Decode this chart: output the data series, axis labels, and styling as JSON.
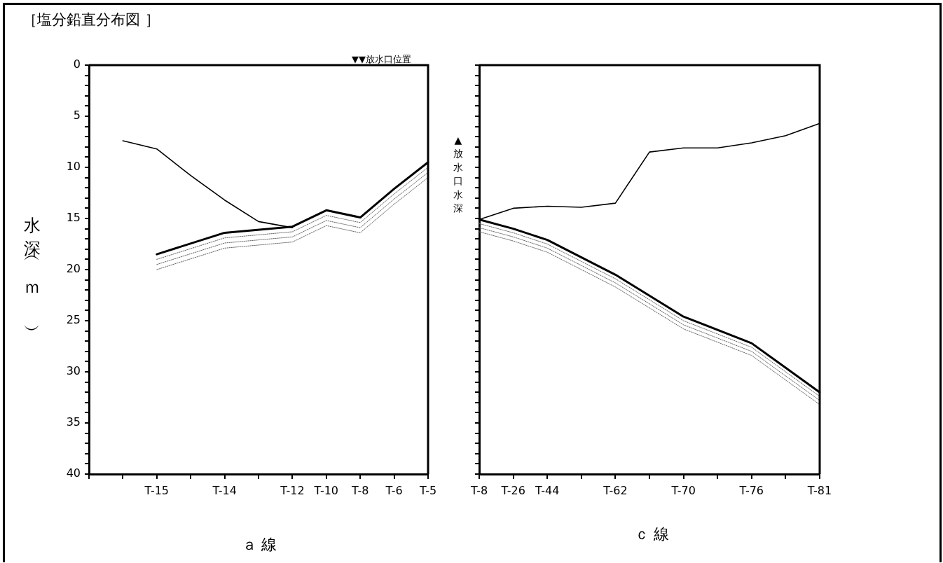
{
  "chart_data": [
    {
      "type": "line",
      "title": "［塩分鉛直分布図 ］",
      "xlabel": "ａ 線",
      "ylabel": "水深（ｍ）",
      "marker": "none",
      "grid": false,
      "legend": false,
      "categories": [
        null,
        null,
        "T-15",
        null,
        "T-14",
        null,
        "T-12",
        "T-10",
        "T-8",
        "T-6",
        "T-5"
      ],
      "ylim": [
        40,
        0
      ],
      "yticks": [
        0,
        {
          "value": 1,
          "label": null
        },
        {
          "value": 2,
          "label": null
        },
        {
          "value": 3,
          "label": null
        },
        {
          "value": 4,
          "label": null
        },
        5,
        {
          "value": 6,
          "label": null
        },
        {
          "value": 7,
          "label": null
        },
        {
          "value": 8,
          "label": null
        },
        {
          "value": 9,
          "label": null
        },
        10,
        {
          "value": 11,
          "label": null
        },
        {
          "value": 12,
          "label": null
        },
        {
          "value": 13,
          "label": null
        },
        {
          "value": 14,
          "label": null
        },
        15,
        {
          "value": 16,
          "label": null
        },
        {
          "value": 17,
          "label": null
        },
        {
          "value": 18,
          "label": null
        },
        {
          "value": 19,
          "label": null
        },
        20,
        {
          "value": 21,
          "label": null
        },
        {
          "value": 22,
          "label": null
        },
        {
          "value": 23,
          "label": null
        },
        {
          "value": 24,
          "label": null
        },
        25,
        {
          "value": 26,
          "label": null
        },
        {
          "value": 27,
          "label": null
        },
        {
          "value": 28,
          "label": null
        },
        {
          "value": 29,
          "label": null
        },
        30,
        {
          "value": 31,
          "label": null
        },
        {
          "value": 32,
          "label": null
        },
        {
          "value": 33,
          "label": null
        },
        {
          "value": 34,
          "label": null
        },
        35,
        {
          "value": 36,
          "label": null
        },
        {
          "value": 37,
          "label": null
        },
        {
          "value": 38,
          "label": null
        },
        {
          "value": 39,
          "label": null
        },
        40
      ],
      "annotations": [
        "▼▼放水口位置"
      ],
      "series": [
        {
          "color": "#000000",
          "line_style": "solid",
          "values": [
            null,
            null,
            18.5,
            null,
            16.4,
            null,
            15.8,
            14.2,
            14.9,
            12.1,
            9.5
          ]
        },
        {
          "color": "#666666",
          "line_style": "dotted",
          "values": [
            null,
            null,
            19.0,
            null,
            16.9,
            null,
            16.3,
            14.7,
            15.4,
            12.6,
            10.0
          ]
        },
        {
          "color": "#666666",
          "line_style": "dotted",
          "values": [
            null,
            null,
            19.5,
            null,
            17.4,
            null,
            16.8,
            15.2,
            15.9,
            13.1,
            10.5
          ]
        },
        {
          "color": "#666666",
          "line_style": "dotted",
          "values": [
            null,
            null,
            20.0,
            null,
            17.9,
            null,
            17.3,
            15.7,
            16.4,
            13.6,
            11.0
          ]
        },
        {
          "color": "#000000",
          "line_style": "solid",
          "values": [
            null,
            7.4,
            8.2,
            10.8,
            13.2,
            15.3,
            15.9,
            null,
            null,
            null,
            null
          ]
        }
      ]
    },
    {
      "type": "line",
      "xlabel": "ｃ 線",
      "marker": "none",
      "grid": false,
      "legend": false,
      "tick_labels": "x",
      "categories": [
        "T-8",
        "T-26",
        "T-44",
        null,
        "T-62",
        null,
        "T-70",
        null,
        "T-76",
        null,
        "T-81"
      ],
      "ylim": [
        40,
        0
      ],
      "yticks": [
        0,
        {
          "value": 1,
          "label": null
        },
        {
          "value": 2,
          "label": null
        },
        {
          "value": 3,
          "label": null
        },
        {
          "value": 4,
          "label": null
        },
        5,
        {
          "value": 6,
          "label": null
        },
        {
          "value": 7,
          "label": null
        },
        {
          "value": 8,
          "label": null
        },
        {
          "value": 9,
          "label": null
        },
        10,
        {
          "value": 11,
          "label": null
        },
        {
          "value": 12,
          "label": null
        },
        {
          "value": 13,
          "label": null
        },
        {
          "value": 14,
          "label": null
        },
        15,
        {
          "value": 16,
          "label": null
        },
        {
          "value": 17,
          "label": null
        },
        {
          "value": 18,
          "label": null
        },
        {
          "value": 19,
          "label": null
        },
        20,
        {
          "value": 21,
          "label": null
        },
        {
          "value": 22,
          "label": null
        },
        {
          "value": 23,
          "label": null
        },
        {
          "value": 24,
          "label": null
        },
        25,
        {
          "value": 26,
          "label": null
        },
        {
          "value": 27,
          "label": null
        },
        {
          "value": 28,
          "label": null
        },
        {
          "value": 29,
          "label": null
        },
        30,
        {
          "value": 31,
          "label": null
        },
        {
          "value": 32,
          "label": null
        },
        {
          "value": 33,
          "label": null
        },
        {
          "value": 34,
          "label": null
        },
        35,
        {
          "value": 36,
          "label": null
        },
        {
          "value": 37,
          "label": null
        },
        {
          "value": 38,
          "label": null
        },
        {
          "value": 39,
          "label": null
        },
        40
      ],
      "annotations": [
        "▲放水口水深"
      ],
      "series": [
        {
          "color": "#000000",
          "line_style": "solid",
          "values": [
            15.1,
            16.0,
            17.1,
            null,
            20.5,
            null,
            24.6,
            null,
            27.2,
            null,
            32.0
          ]
        },
        {
          "color": "#666666",
          "line_style": "dotted",
          "values": [
            15.5,
            16.4,
            17.5,
            null,
            20.9,
            null,
            25.0,
            null,
            27.6,
            null,
            32.4
          ]
        },
        {
          "color": "#666666",
          "line_style": "dotted",
          "values": [
            15.9,
            16.8,
            17.9,
            null,
            21.3,
            null,
            25.4,
            null,
            28.0,
            null,
            32.8
          ]
        },
        {
          "color": "#666666",
          "line_style": "dotted",
          "values": [
            16.3,
            17.2,
            18.3,
            null,
            21.7,
            null,
            25.8,
            null,
            28.4,
            null,
            33.2
          ]
        },
        {
          "color": "#000000",
          "line_style": "solid",
          "values": [
            15.1,
            14.0,
            13.8,
            13.9,
            13.5,
            8.5,
            8.1,
            8.1,
            7.6,
            6.9,
            5.7
          ]
        }
      ]
    }
  ]
}
